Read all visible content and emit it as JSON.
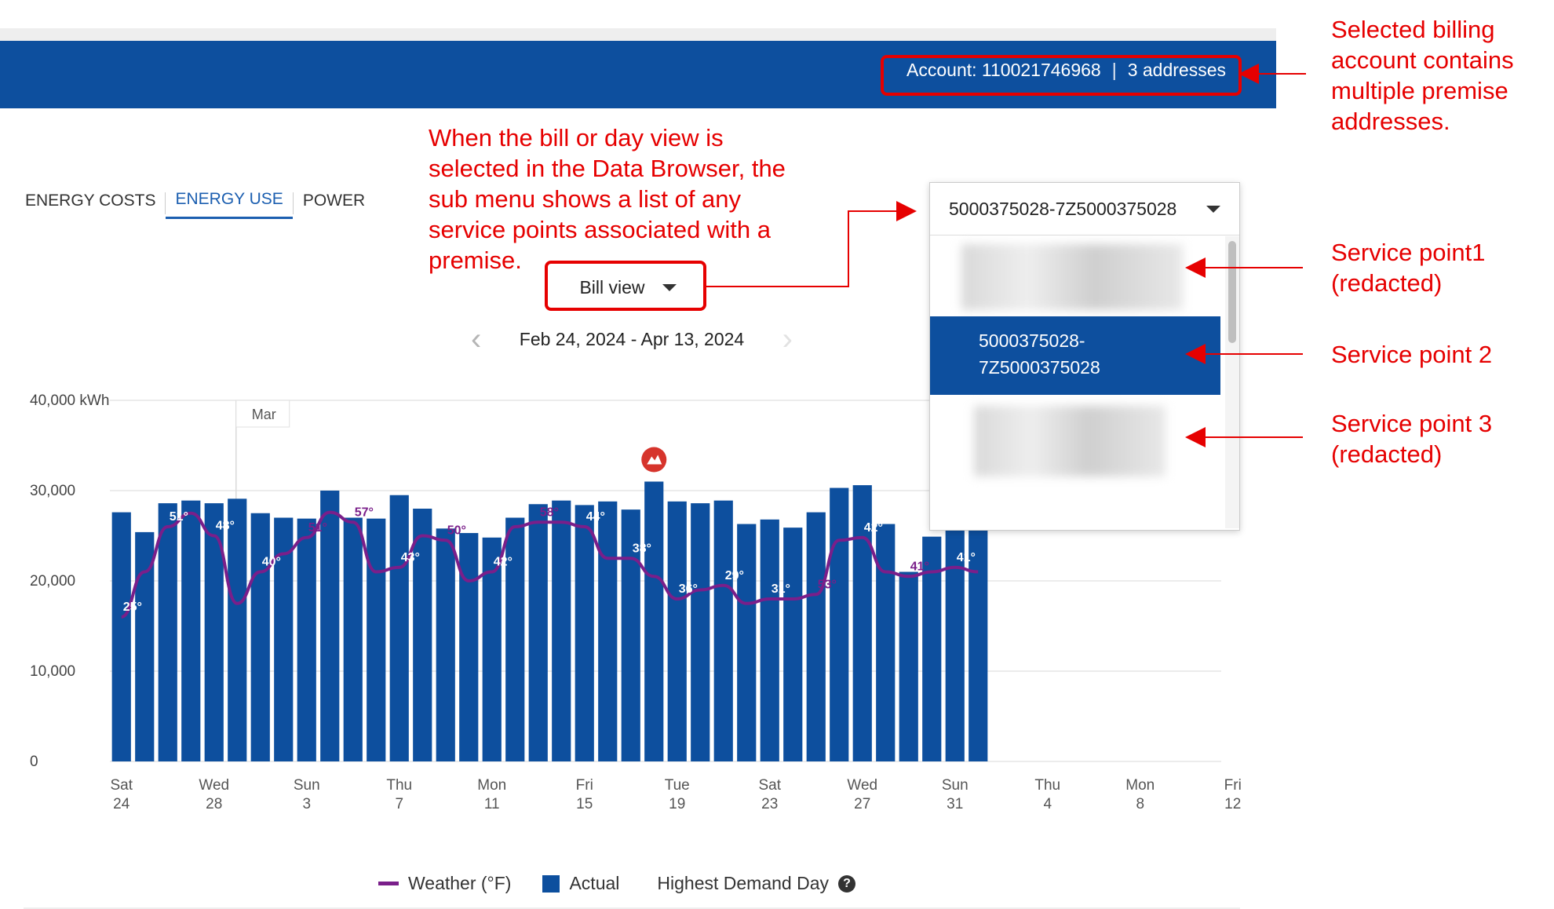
{
  "header": {
    "account_label": "Account: 110021746968",
    "separator": "|",
    "addresses": "3 addresses"
  },
  "tabs": [
    {
      "label": "ENERGY COSTS",
      "active": false
    },
    {
      "label": "ENERGY USE",
      "active": true
    },
    {
      "label": "POWER",
      "active": false
    }
  ],
  "view_select": {
    "value": "Bill view"
  },
  "date_range": {
    "label": "Feb 24, 2024 - Apr 13, 2024"
  },
  "service_point_dropdown": {
    "selected": "5000375028-7Z5000375028",
    "items": [
      {
        "label": "",
        "redacted": true
      },
      {
        "label_line1": "5000375028-",
        "label_line2": "7Z5000375028",
        "selected": true
      },
      {
        "label": "",
        "redacted": true
      }
    ]
  },
  "annotations": {
    "account_note": [
      "Selected billing",
      "account contains",
      "multiple premise",
      "addresses."
    ],
    "submenu_note": [
      "When the bill or day view is",
      "selected in the Data Browser, the",
      "sub menu shows a list of any",
      "service points associated with a",
      "premise."
    ],
    "sp1": [
      "Service point1",
      "(redacted)"
    ],
    "sp2": [
      "Service point 2"
    ],
    "sp3": [
      "Service point 3",
      "(redacted)"
    ]
  },
  "legend": {
    "weather": "Weather (°F)",
    "actual": "Actual",
    "highest": "Highest Demand Day",
    "help_icon": "?"
  },
  "colors": {
    "header": "#0d4f9e",
    "bar": "#0d4f9e",
    "weather": "#7a1f8a",
    "annotation": "#e60000",
    "peak_marker": "#d6342c"
  },
  "chart_data": {
    "type": "bar",
    "ylabel_top": "40,000 kWh",
    "y_ticks": [
      "0",
      "10,000",
      "20,000",
      "30,000",
      "40,000 kWh"
    ],
    "ylim": [
      0,
      40000
    ],
    "month_marker": "Mar",
    "x_ticks": [
      {
        "day": "Sat",
        "date": "24"
      },
      {
        "day": "Wed",
        "date": "28"
      },
      {
        "day": "Sun",
        "date": "3"
      },
      {
        "day": "Thu",
        "date": "7"
      },
      {
        "day": "Mon",
        "date": "11"
      },
      {
        "day": "Fri",
        "date": "15"
      },
      {
        "day": "Tue",
        "date": "19"
      },
      {
        "day": "Sat",
        "date": "23"
      },
      {
        "day": "Wed",
        "date": "27"
      },
      {
        "day": "Sun",
        "date": "31"
      },
      {
        "day": "Thu",
        "date": "4"
      },
      {
        "day": "Mon",
        "date": "8"
      },
      {
        "day": "Fri",
        "date": "12"
      }
    ],
    "slots": 48,
    "series": [
      {
        "type": "bar",
        "values": [
          27600,
          25400,
          28600,
          28900,
          28600,
          29100,
          27500,
          27000,
          26900,
          30000,
          27000,
          26900,
          29500,
          28000,
          25800,
          25300,
          24800,
          27000,
          28500,
          28900,
          28400,
          28800,
          27900,
          31000,
          28800,
          28600,
          28900,
          26300,
          26800,
          25900,
          27600,
          30300,
          30600,
          26300,
          21000,
          24900,
          25900,
          26000
        ]
      },
      {
        "type": "line",
        "values": [
          16000,
          21000,
          26000,
          27500,
          25000,
          17500,
          21000,
          23000,
          24800,
          27600,
          26500,
          21000,
          21500,
          25000,
          24500,
          20000,
          21000,
          26000,
          26500,
          26500,
          26000,
          22500,
          22500,
          20500,
          18000,
          19000,
          19500,
          17500,
          18000,
          18000,
          18500,
          24500,
          24800,
          21000,
          20500,
          21000,
          21500,
          21000
        ]
      }
    ],
    "temperature_labels": [
      {
        "index": 0,
        "text": "25°",
        "color": "white"
      },
      {
        "index": 2,
        "text": "51°",
        "color": "white"
      },
      {
        "index": 4,
        "text": "48°",
        "color": "white"
      },
      {
        "index": 6,
        "text": "40°",
        "color": "white"
      },
      {
        "index": 8,
        "text": "51°",
        "color": "purple"
      },
      {
        "index": 10,
        "text": "57°",
        "color": "purple"
      },
      {
        "index": 12,
        "text": "43°",
        "color": "white"
      },
      {
        "index": 14,
        "text": "50°",
        "color": "purple"
      },
      {
        "index": 16,
        "text": "42°",
        "color": "white"
      },
      {
        "index": 18,
        "text": "58°",
        "color": "purple"
      },
      {
        "index": 20,
        "text": "44°",
        "color": "white"
      },
      {
        "index": 22,
        "text": "38°",
        "color": "white"
      },
      {
        "index": 24,
        "text": "36°",
        "color": "white"
      },
      {
        "index": 26,
        "text": "29°",
        "color": "white"
      },
      {
        "index": 28,
        "text": "31°",
        "color": "white"
      },
      {
        "index": 30,
        "text": "53°",
        "color": "purple"
      },
      {
        "index": 32,
        "text": "42°",
        "color": "white"
      },
      {
        "index": 34,
        "text": "41°",
        "color": "purple"
      },
      {
        "index": 36,
        "text": "41°",
        "color": "white"
      }
    ],
    "peak_index": 23,
    "legend_placement": "bottom",
    "grid": true
  }
}
